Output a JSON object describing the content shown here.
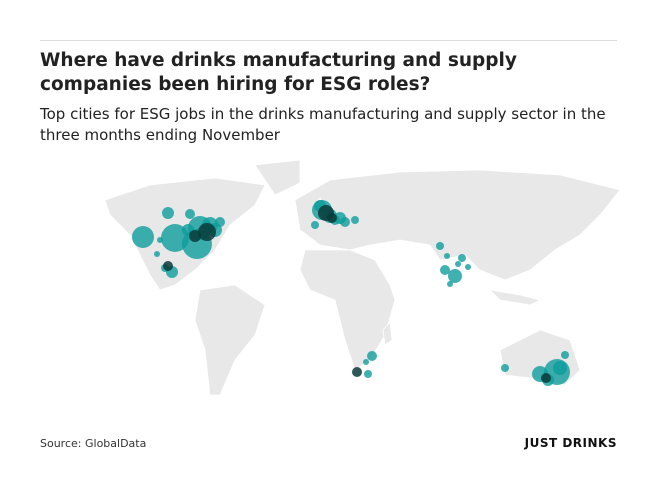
{
  "header": {
    "title": "Where have drinks manufacturing and supply companies been hiring for ESG roles?",
    "subtitle": "Top cities for ESG jobs in the drinks manufacturing and supply sector in the three months ending November"
  },
  "footer": {
    "source": "Source: GlobalData",
    "logo": "JUST DRINKS"
  }
}
